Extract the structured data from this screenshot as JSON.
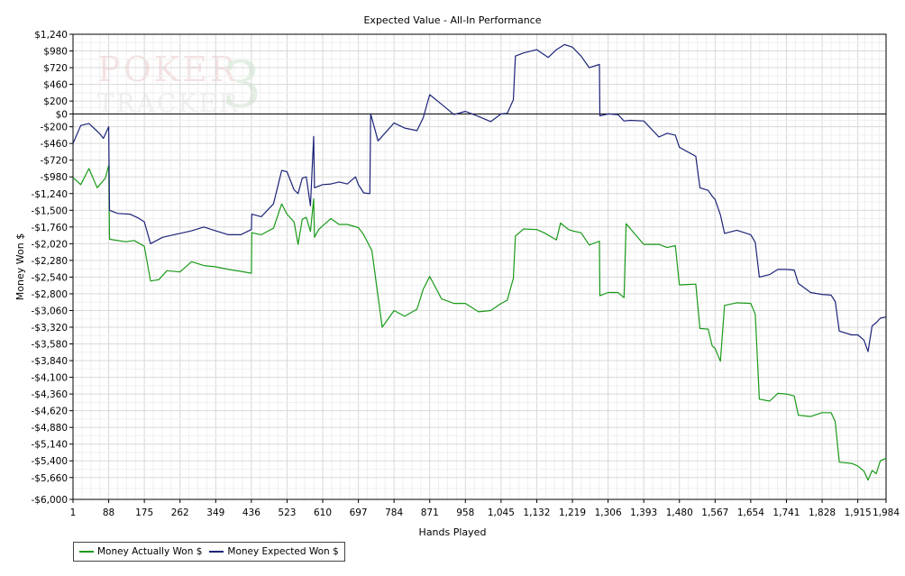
{
  "chart_data": {
    "type": "line",
    "title": "Expected Value - All-In Performance",
    "xlabel": "Hands Played",
    "ylabel": "Money Won $",
    "xlim": [
      1,
      1984
    ],
    "ylim": [
      -6000,
      1240
    ],
    "x_ticks": [
      1,
      88,
      175,
      262,
      349,
      436,
      523,
      610,
      697,
      784,
      871,
      958,
      1045,
      1132,
      1219,
      1306,
      1393,
      1480,
      1567,
      1654,
      1741,
      1828,
      1915,
      1984
    ],
    "x_tick_labels": [
      "1",
      "88",
      "175",
      "262",
      "349",
      "436",
      "523",
      "610",
      "697",
      "784",
      "871",
      "958",
      "1,045",
      "1,132",
      "1,219",
      "1,306",
      "1,393",
      "1,480",
      "1,567",
      "1,654",
      "1,741",
      "1,828",
      "1,915",
      "1,984"
    ],
    "y_ticks": [
      1240,
      980,
      720,
      460,
      200,
      0,
      -200,
      -460,
      -720,
      -980,
      -1240,
      -1500,
      -1760,
      -2020,
      -2280,
      -2540,
      -2800,
      -3060,
      -3320,
      -3580,
      -3840,
      -4100,
      -4360,
      -4620,
      -4880,
      -5140,
      -5400,
      -5660,
      -6000
    ],
    "y_tick_labels": [
      "$1,240",
      "$980",
      "$720",
      "$460",
      "$200",
      "$0",
      "-$200",
      "-$460",
      "-$720",
      "-$980",
      "-$1,240",
      "-$1,500",
      "-$1,760",
      "-$2,020",
      "-$2,280",
      "-$2,540",
      "-$2,800",
      "-$3,060",
      "-$3,320",
      "-$3,580",
      "-$3,840",
      "-$4,100",
      "-$4,360",
      "-$4,620",
      "-$4,880",
      "-$5,140",
      "-$5,400",
      "-$5,660",
      "-$6,000"
    ],
    "grid": true,
    "legend_position": "bottom-left",
    "series": [
      {
        "name": "Money Actually Won $",
        "color": "#1a9a1a",
        "points": [
          [
            1,
            -990
          ],
          [
            20,
            -1100
          ],
          [
            40,
            -850
          ],
          [
            60,
            -1150
          ],
          [
            80,
            -1000
          ],
          [
            88,
            -800
          ],
          [
            90,
            -1950
          ],
          [
            100,
            -1960
          ],
          [
            130,
            -1990
          ],
          [
            150,
            -1970
          ],
          [
            175,
            -2060
          ],
          [
            190,
            -2600
          ],
          [
            210,
            -2580
          ],
          [
            230,
            -2440
          ],
          [
            262,
            -2460
          ],
          [
            290,
            -2300
          ],
          [
            320,
            -2360
          ],
          [
            349,
            -2380
          ],
          [
            380,
            -2420
          ],
          [
            410,
            -2450
          ],
          [
            436,
            -2480
          ],
          [
            437,
            -1850
          ],
          [
            460,
            -1880
          ],
          [
            490,
            -1780
          ],
          [
            510,
            -1400
          ],
          [
            523,
            -1560
          ],
          [
            540,
            -1680
          ],
          [
            550,
            -2030
          ],
          [
            560,
            -1640
          ],
          [
            570,
            -1610
          ],
          [
            580,
            -1830
          ],
          [
            588,
            -1320
          ],
          [
            590,
            -1920
          ],
          [
            600,
            -1800
          ],
          [
            610,
            -1740
          ],
          [
            630,
            -1630
          ],
          [
            650,
            -1720
          ],
          [
            670,
            -1720
          ],
          [
            697,
            -1770
          ],
          [
            710,
            -1880
          ],
          [
            730,
            -2130
          ],
          [
            755,
            -3320
          ],
          [
            784,
            -3060
          ],
          [
            810,
            -3150
          ],
          [
            840,
            -3040
          ],
          [
            855,
            -2730
          ],
          [
            871,
            -2530
          ],
          [
            900,
            -2880
          ],
          [
            930,
            -2950
          ],
          [
            958,
            -2950
          ],
          [
            990,
            -3080
          ],
          [
            1020,
            -3060
          ],
          [
            1045,
            -2950
          ],
          [
            1060,
            -2900
          ],
          [
            1075,
            -2560
          ],
          [
            1080,
            -1900
          ],
          [
            1100,
            -1790
          ],
          [
            1132,
            -1800
          ],
          [
            1150,
            -1850
          ],
          [
            1180,
            -1960
          ],
          [
            1190,
            -1700
          ],
          [
            1210,
            -1800
          ],
          [
            1219,
            -1820
          ],
          [
            1240,
            -1850
          ],
          [
            1260,
            -2040
          ],
          [
            1285,
            -1980
          ],
          [
            1286,
            -2830
          ],
          [
            1306,
            -2780
          ],
          [
            1330,
            -2780
          ],
          [
            1345,
            -2860
          ],
          [
            1350,
            -1710
          ],
          [
            1393,
            -2030
          ],
          [
            1430,
            -2030
          ],
          [
            1450,
            -2080
          ],
          [
            1470,
            -2050
          ],
          [
            1480,
            -2660
          ],
          [
            1520,
            -2650
          ],
          [
            1530,
            -3340
          ],
          [
            1550,
            -3350
          ],
          [
            1560,
            -3610
          ],
          [
            1567,
            -3650
          ],
          [
            1580,
            -3850
          ],
          [
            1590,
            -2980
          ],
          [
            1620,
            -2940
          ],
          [
            1654,
            -2950
          ],
          [
            1665,
            -3120
          ],
          [
            1675,
            -4440
          ],
          [
            1700,
            -4470
          ],
          [
            1720,
            -4350
          ],
          [
            1741,
            -4360
          ],
          [
            1760,
            -4390
          ],
          [
            1770,
            -4690
          ],
          [
            1800,
            -4710
          ],
          [
            1828,
            -4650
          ],
          [
            1850,
            -4650
          ],
          [
            1860,
            -4790
          ],
          [
            1870,
            -5420
          ],
          [
            1900,
            -5440
          ],
          [
            1915,
            -5480
          ],
          [
            1930,
            -5560
          ],
          [
            1940,
            -5700
          ],
          [
            1950,
            -5550
          ],
          [
            1960,
            -5600
          ],
          [
            1970,
            -5400
          ],
          [
            1984,
            -5360
          ]
        ]
      },
      {
        "name": "Money Expected Won $",
        "color": "#1c2478",
        "points": [
          [
            1,
            -460
          ],
          [
            20,
            -180
          ],
          [
            40,
            -150
          ],
          [
            55,
            -240
          ],
          [
            65,
            -300
          ],
          [
            75,
            -380
          ],
          [
            88,
            -200
          ],
          [
            90,
            -1500
          ],
          [
            110,
            -1550
          ],
          [
            140,
            -1560
          ],
          [
            160,
            -1620
          ],
          [
            175,
            -1680
          ],
          [
            190,
            -2020
          ],
          [
            220,
            -1920
          ],
          [
            262,
            -1860
          ],
          [
            290,
            -1820
          ],
          [
            320,
            -1760
          ],
          [
            349,
            -1820
          ],
          [
            380,
            -1880
          ],
          [
            410,
            -1880
          ],
          [
            436,
            -1800
          ],
          [
            437,
            -1560
          ],
          [
            460,
            -1600
          ],
          [
            490,
            -1400
          ],
          [
            510,
            -880
          ],
          [
            523,
            -900
          ],
          [
            540,
            -1180
          ],
          [
            550,
            -1240
          ],
          [
            560,
            -1000
          ],
          [
            570,
            -980
          ],
          [
            580,
            -1430
          ],
          [
            588,
            -350
          ],
          [
            590,
            -1150
          ],
          [
            610,
            -1100
          ],
          [
            630,
            -1090
          ],
          [
            650,
            -1060
          ],
          [
            670,
            -1090
          ],
          [
            690,
            -980
          ],
          [
            697,
            -1100
          ],
          [
            710,
            -1230
          ],
          [
            725,
            -1240
          ],
          [
            727,
            0
          ],
          [
            745,
            -420
          ],
          [
            784,
            -140
          ],
          [
            810,
            -220
          ],
          [
            840,
            -260
          ],
          [
            855,
            -60
          ],
          [
            871,
            300
          ],
          [
            900,
            150
          ],
          [
            930,
            -10
          ],
          [
            958,
            40
          ],
          [
            990,
            -40
          ],
          [
            1020,
            -120
          ],
          [
            1045,
            0
          ],
          [
            1060,
            10
          ],
          [
            1075,
            220
          ],
          [
            1080,
            900
          ],
          [
            1100,
            950
          ],
          [
            1132,
            1000
          ],
          [
            1160,
            880
          ],
          [
            1180,
            1000
          ],
          [
            1200,
            1080
          ],
          [
            1219,
            1040
          ],
          [
            1240,
            900
          ],
          [
            1260,
            720
          ],
          [
            1285,
            770
          ],
          [
            1286,
            -30
          ],
          [
            1306,
            0
          ],
          [
            1330,
            -10
          ],
          [
            1345,
            -110
          ],
          [
            1360,
            -100
          ],
          [
            1393,
            -110
          ],
          [
            1430,
            -360
          ],
          [
            1450,
            -300
          ],
          [
            1470,
            -330
          ],
          [
            1480,
            -520
          ],
          [
            1520,
            -660
          ],
          [
            1530,
            -1150
          ],
          [
            1550,
            -1190
          ],
          [
            1560,
            -1280
          ],
          [
            1567,
            -1330
          ],
          [
            1580,
            -1570
          ],
          [
            1590,
            -1860
          ],
          [
            1620,
            -1810
          ],
          [
            1654,
            -1880
          ],
          [
            1665,
            -2000
          ],
          [
            1675,
            -2540
          ],
          [
            1700,
            -2500
          ],
          [
            1720,
            -2420
          ],
          [
            1741,
            -2420
          ],
          [
            1760,
            -2430
          ],
          [
            1770,
            -2640
          ],
          [
            1800,
            -2780
          ],
          [
            1828,
            -2810
          ],
          [
            1850,
            -2820
          ],
          [
            1860,
            -2920
          ],
          [
            1870,
            -3380
          ],
          [
            1900,
            -3440
          ],
          [
            1915,
            -3440
          ],
          [
            1930,
            -3520
          ],
          [
            1940,
            -3700
          ],
          [
            1950,
            -3300
          ],
          [
            1960,
            -3250
          ],
          [
            1970,
            -3180
          ],
          [
            1984,
            -3160
          ]
        ]
      }
    ]
  },
  "legend": {
    "items": [
      {
        "label": "Money Actually Won $",
        "color": "#1a9a1a"
      },
      {
        "label": "Money Expected Won $",
        "color": "#1c2478"
      }
    ]
  },
  "watermark": {
    "line1": "POKER",
    "line2": "TRACKER",
    "mark": "3"
  }
}
